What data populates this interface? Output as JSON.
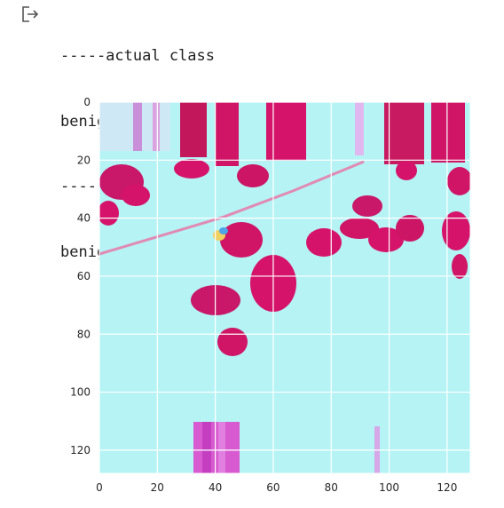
{
  "output_icon": "output-arrow-icon",
  "output_lines": [
    "-----actual class",
    "benign",
    "-----predicted label",
    "benign"
  ],
  "image_plot": {
    "type": "image",
    "x_ticks": [
      0,
      20,
      40,
      60,
      80,
      100,
      120
    ],
    "y_ticks": [
      0,
      20,
      40,
      60,
      80,
      100,
      120
    ],
    "xlim": [
      0,
      128
    ],
    "ylim": [
      128,
      0
    ],
    "grid": true,
    "colors": {
      "background": "#b5f3f4",
      "stain": "#d6136b",
      "accent": "#d85ad0",
      "grid": "#ffffff"
    }
  }
}
